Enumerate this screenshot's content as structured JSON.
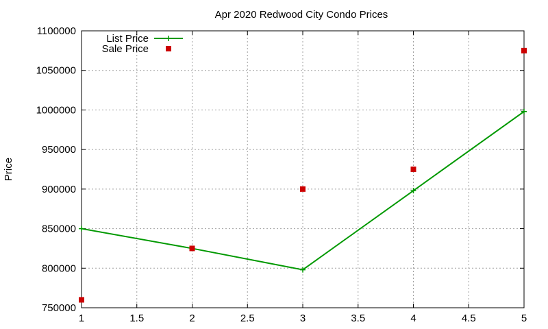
{
  "chart_data": {
    "type": "line",
    "title": "Apr 2020 Redwood City Condo Prices",
    "xlabel": "",
    "ylabel": "Price",
    "xlim": [
      1,
      5
    ],
    "ylim": [
      750000,
      1100000
    ],
    "x_ticks": [
      "1",
      "1.5",
      "2",
      "2.5",
      "3",
      "3.5",
      "4",
      "4.5",
      "5"
    ],
    "y_ticks": [
      "750000",
      "800000",
      "850000",
      "900000",
      "950000",
      "1000000",
      "1050000",
      "1100000"
    ],
    "grid": true,
    "legend_position": "top-left",
    "series": [
      {
        "name": "List Price",
        "style": "line-with-plus-markers",
        "color": "#009900",
        "x": [
          1,
          2,
          3,
          4,
          5
        ],
        "y": [
          850000,
          825000,
          798000,
          898000,
          998000
        ]
      },
      {
        "name": "Sale Price",
        "style": "square-markers",
        "color": "#cc0000",
        "x": [
          1,
          2,
          3,
          4,
          5
        ],
        "y": [
          760000,
          825000,
          900000,
          925000,
          1075000
        ]
      }
    ]
  }
}
